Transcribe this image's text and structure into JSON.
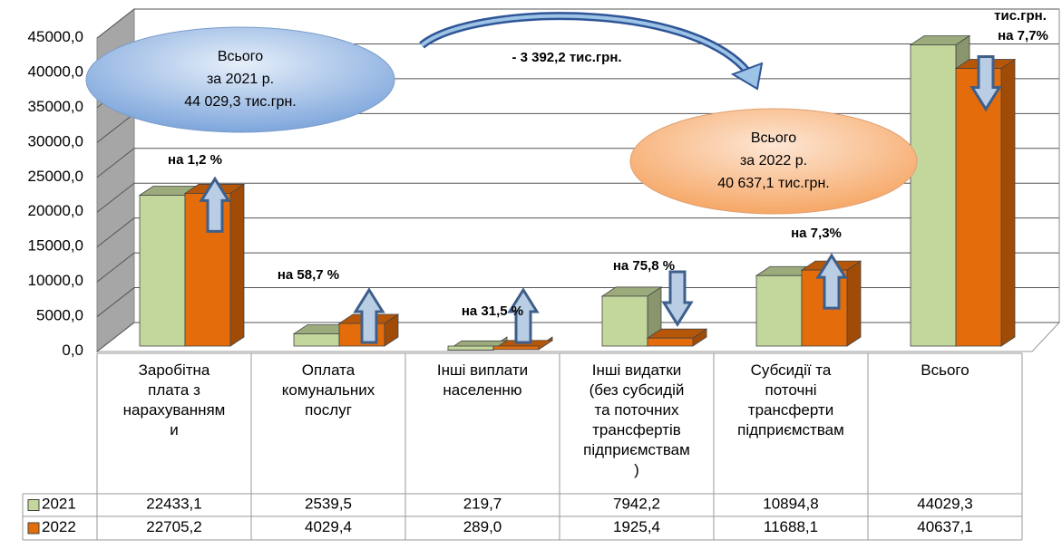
{
  "chart_data": {
    "type": "bar3d",
    "categories": [
      "Заробітна\nплата з\nнарахуванням\nи",
      "Оплата\nкомунальних\nпослуг",
      "Інші виплати\nнаселенню",
      "Інші видатки\n(без субсидій\nта поточних\nтрансфертів\nпідприємствам\n)",
      "Субсидії та\nпоточні\nтрансферти\nпідприємствам",
      "Всього"
    ],
    "series": [
      {
        "name": "2021",
        "color": "#c3d69b",
        "values": [
          22433.1,
          2539.5,
          219.7,
          7942.2,
          10894.8,
          44029.3
        ],
        "value_labels": [
          "22433,1",
          "2539,5",
          "219,7",
          "7942,2",
          "10894,8",
          "44029,3"
        ]
      },
      {
        "name": "2022",
        "color": "#e46c0a",
        "values": [
          22705.2,
          4029.4,
          289.0,
          1925.4,
          11688.1,
          40637.1
        ],
        "value_labels": [
          "22705,2",
          "4029,4",
          "289,0",
          "1925,4",
          "11688,1",
          "40637,1"
        ]
      }
    ],
    "ylim": [
      0,
      45000
    ],
    "yticks": [
      {
        "value": 0,
        "label": "0,0"
      },
      {
        "value": 5000,
        "label": "5000,0"
      },
      {
        "value": 10000,
        "label": "10000,0"
      },
      {
        "value": 15000,
        "label": "15000,0"
      },
      {
        "value": 20000,
        "label": "20000,0"
      },
      {
        "value": 25000,
        "label": "25000,0"
      },
      {
        "value": 30000,
        "label": "30000,0"
      },
      {
        "value": 35000,
        "label": "35000,0"
      },
      {
        "value": 40000,
        "label": "40000,0"
      },
      {
        "value": 45000,
        "label": "45000,0"
      }
    ],
    "grid": true,
    "annotations": [
      "на 1,2 %",
      "на  58,7 %",
      "на 31,5 %",
      "на 75,8 %",
      "на  7,3%",
      "тис.грн.",
      "на 7,7%",
      "- 3 392,2 тис.грн.",
      "Всього\nза 2021 р.\n44 029,3 тис.грн.",
      "Всього\nза  2022 р.\n40 637,1 тис.грн."
    ]
  }
}
